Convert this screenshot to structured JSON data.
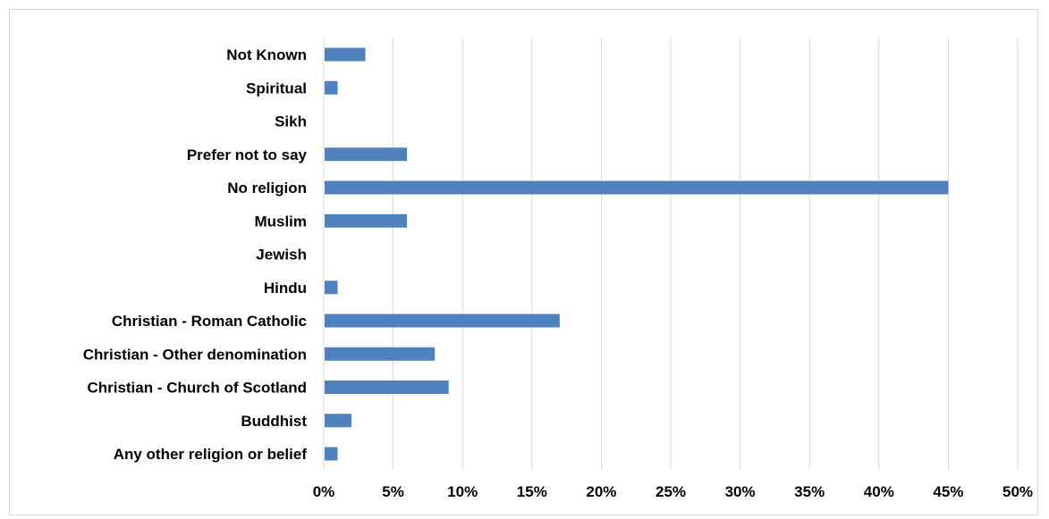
{
  "chart_data": {
    "type": "bar",
    "orientation": "horizontal",
    "categories": [
      "Not Known",
      "Spiritual",
      "Sikh",
      "Prefer not to say",
      "No religion",
      "Muslim",
      "Jewish",
      "Hindu",
      "Christian - Roman Catholic",
      "Christian - Other denomination",
      "Christian - Church of Scotland",
      "Buddhist",
      "Any other religion or belief"
    ],
    "values": [
      3,
      1,
      0,
      6,
      45,
      6,
      0,
      1,
      17,
      8,
      9,
      2,
      1
    ],
    "xlim": [
      0,
      50
    ],
    "xticks": [
      0,
      5,
      10,
      15,
      20,
      25,
      30,
      35,
      40,
      45,
      50
    ],
    "tick_labels": [
      "0%",
      "5%",
      "10%",
      "15%",
      "20%",
      "25%",
      "30%",
      "35%",
      "40%",
      "45%",
      "50%"
    ],
    "title": "",
    "xlabel": "",
    "ylabel": "",
    "grid": "vertical",
    "legend": "none",
    "bar_color": "#4f81bd",
    "grid_color": "#d9d9d9"
  }
}
